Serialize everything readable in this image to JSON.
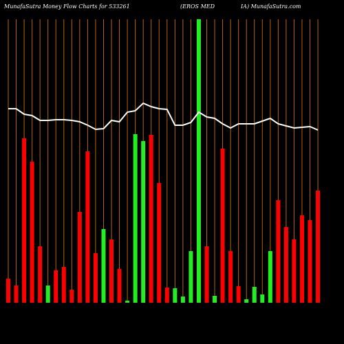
{
  "chart_data": {
    "type": "bar",
    "title": "MunafaSutra  Money Flow  Charts for 533261",
    "subtitle": "(EROS MED",
    "subtitle2": "IA) MunafaSutra.com",
    "ylim": [
      0,
      412
    ],
    "series": [
      {
        "type": "bar",
        "values": [
          35,
          25,
          239,
          205,
          82,
          25,
          47,
          52,
          19,
          132,
          220,
          72,
          107,
          92,
          49,
          3,
          245,
          235,
          244,
          174,
          22,
          21,
          9,
          75,
          412,
          82,
          10,
          224,
          75,
          24,
          5,
          23,
          12,
          75,
          149,
          110,
          92,
          127,
          120,
          163
        ],
        "colors": [
          "red",
          "red",
          "red",
          "red",
          "red",
          "#22ee22",
          "red",
          "red",
          "red",
          "red",
          "red",
          "red",
          "#22ee22",
          "red",
          "red",
          "#22ee22",
          "#22ee22",
          "#22ee22",
          "red",
          "red",
          "red",
          "#22ee22",
          "#22ee22",
          "#22ee22",
          "#22ee22",
          "red",
          "#22ee22",
          "red",
          "red",
          "red",
          "#22ee22",
          "#22ee22",
          "#22ee22",
          "#22ee22",
          "red",
          "red",
          "red",
          "red",
          "red",
          "red"
        ]
      },
      {
        "type": "line",
        "color": "white",
        "values": [
          282,
          282,
          274,
          272,
          265,
          265,
          266,
          266,
          265,
          263,
          258,
          252,
          253,
          265,
          263,
          277,
          279,
          290,
          285,
          282,
          281,
          258,
          258,
          262,
          277,
          270,
          268,
          260,
          254,
          260,
          260,
          260,
          264,
          268,
          260,
          257,
          254,
          255,
          256,
          251
        ]
      }
    ]
  }
}
